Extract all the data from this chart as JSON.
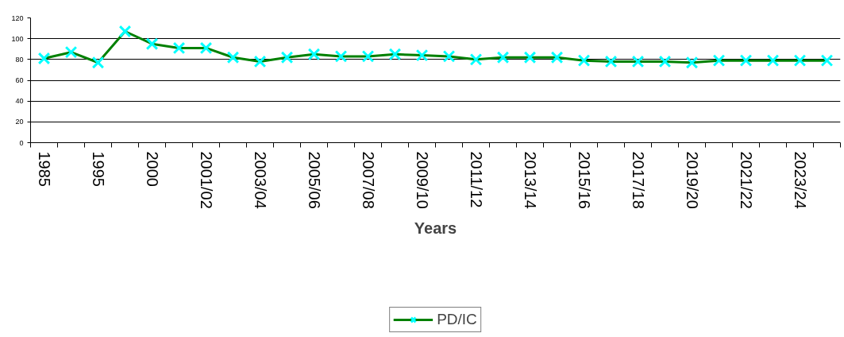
{
  "chart_data": {
    "type": "line",
    "xlabel": "Years",
    "categories": [
      "1985",
      null,
      "1995",
      null,
      "2000",
      null,
      "2001/02",
      null,
      "2003/04",
      null,
      "2005/06",
      null,
      "2007/08",
      null,
      "2009/10",
      null,
      "2011/12",
      null,
      "2013/14",
      null,
      "2015/16",
      null,
      "2017/18",
      null,
      "2019/20",
      null,
      "2021/22",
      null,
      "2023/24",
      null
    ],
    "series": [
      {
        "name": "PD/IC",
        "color": "#008000",
        "values": [
          81,
          87,
          77,
          107,
          95,
          91,
          91,
          82,
          78,
          82,
          85,
          83,
          83,
          85,
          84,
          83,
          80,
          82,
          82,
          82,
          79,
          78,
          78,
          78,
          77,
          79,
          79,
          79,
          79,
          79
        ]
      }
    ],
    "ylim": [
      0,
      120
    ],
    "yticks": [
      0,
      20,
      40,
      60,
      80,
      100,
      120
    ],
    "grid": "y",
    "legend": "bottom",
    "marker": "cross",
    "line_style": "solid"
  }
}
